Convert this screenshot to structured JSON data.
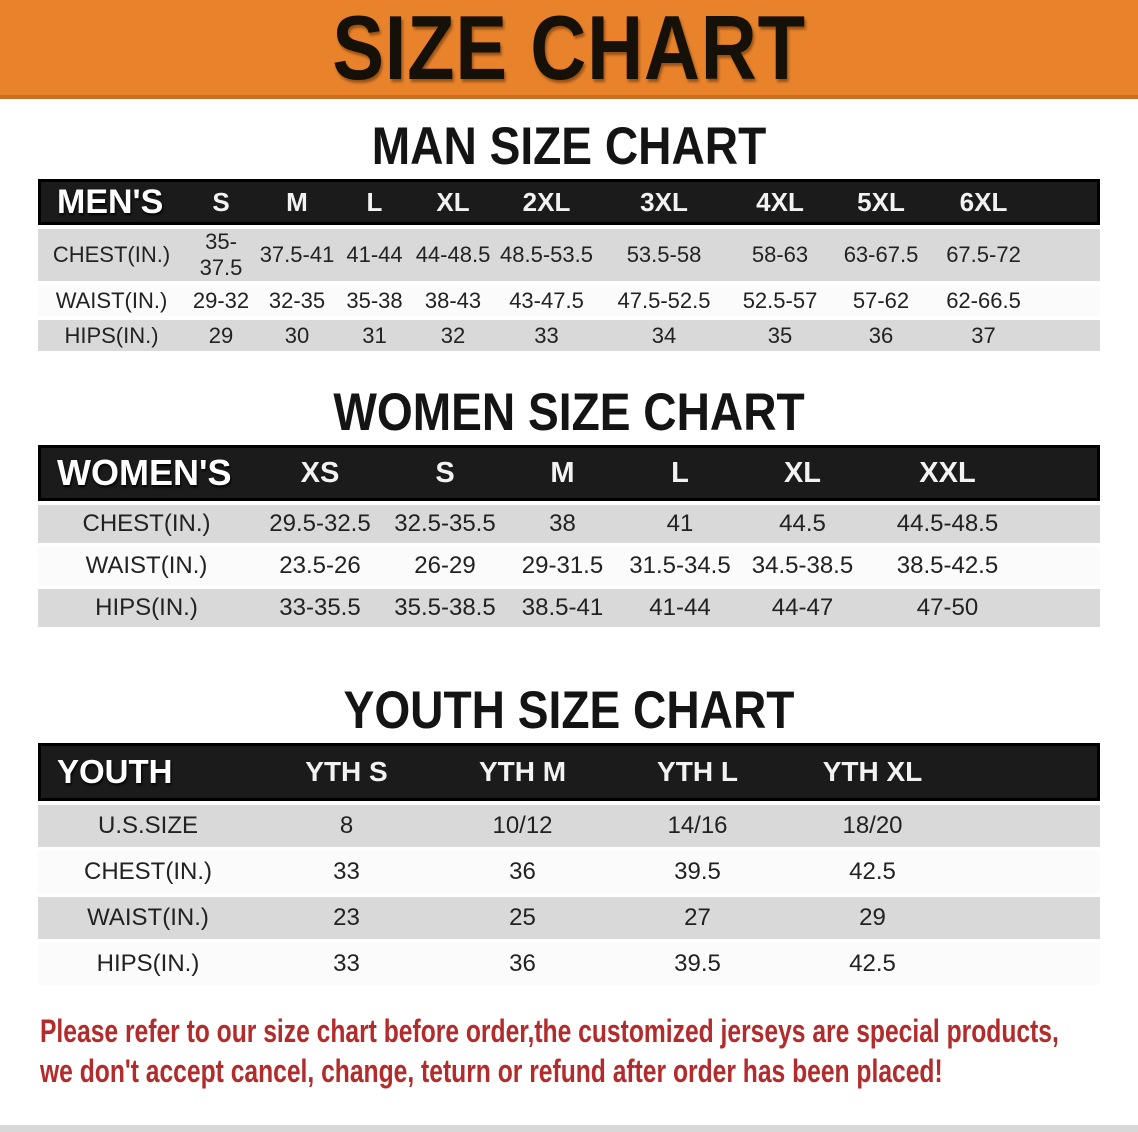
{
  "banner": {
    "title": "SIZE CHART",
    "bg_color": "#E8832C",
    "text_color": "#151008"
  },
  "sections": [
    {
      "heading": "MAN SIZE CHART",
      "table": {
        "header_label": "MEN'S",
        "columns": [
          "S",
          "M",
          "L",
          "XL",
          "2XL",
          "3XL",
          "4XL",
          "5XL",
          "6XL"
        ],
        "rows": [
          {
            "label": "CHEST(IN.)",
            "values": [
              "35-37.5",
              "37.5-41",
              "41-44",
              "44-48.5",
              "48.5-53.5",
              "53.5-58",
              "58-63",
              "63-67.5",
              "67.5-72"
            ]
          },
          {
            "label": "WAIST(IN.)",
            "values": [
              "29-32",
              "32-35",
              "35-38",
              "38-43",
              "43-47.5",
              "47.5-52.5",
              "52.5-57",
              "57-62",
              "62-66.5"
            ]
          },
          {
            "label": "HIPS(IN.)",
            "values": [
              "29",
              "30",
              "31",
              "32",
              "33",
              "34",
              "35",
              "36",
              "37"
            ]
          }
        ]
      }
    },
    {
      "heading": "WOMEN SIZE CHART",
      "table": {
        "header_label": "WOMEN'S",
        "columns": [
          "XS",
          "S",
          "M",
          "L",
          "XL",
          "XXL"
        ],
        "rows": [
          {
            "label": "CHEST(IN.)",
            "values": [
              "29.5-32.5",
              "32.5-35.5",
              "38",
              "41",
              "44.5",
              "44.5-48.5"
            ]
          },
          {
            "label": "WAIST(IN.)",
            "values": [
              "23.5-26",
              "26-29",
              "29-31.5",
              "31.5-34.5",
              "34.5-38.5",
              "38.5-42.5"
            ]
          },
          {
            "label": "HIPS(IN.)",
            "values": [
              "33-35.5",
              "35.5-38.5",
              "38.5-41",
              "41-44",
              "44-47",
              "47-50"
            ]
          }
        ]
      }
    },
    {
      "heading": "YOUTH SIZE CHART",
      "table": {
        "header_label": "YOUTH",
        "columns": [
          "YTH S",
          "YTH M",
          "YTH L",
          "YTH XL"
        ],
        "rows": [
          {
            "label": "U.S.SIZE",
            "values": [
              "8",
              "10/12",
              "14/16",
              "18/20"
            ]
          },
          {
            "label": "CHEST(IN.)",
            "values": [
              "33",
              "36",
              "39.5",
              "42.5"
            ]
          },
          {
            "label": "WAIST(IN.)",
            "values": [
              "23",
              "25",
              "27",
              "29"
            ]
          },
          {
            "label": "HIPS(IN.)",
            "values": [
              "33",
              "36",
              "39.5",
              "42.5"
            ]
          }
        ]
      }
    }
  ],
  "disclaimer": {
    "line1": "Please refer to our size chart before order,the customized jerseys are special products,",
    "line2": "we don't accept cancel, change, teturn or refund after order has been placed!",
    "text_color": "#B32B2B"
  },
  "row_colors": {
    "shaded": "#D9D9D9",
    "plain": "#FBFBFB",
    "header_bg": "#1B1B1B"
  }
}
